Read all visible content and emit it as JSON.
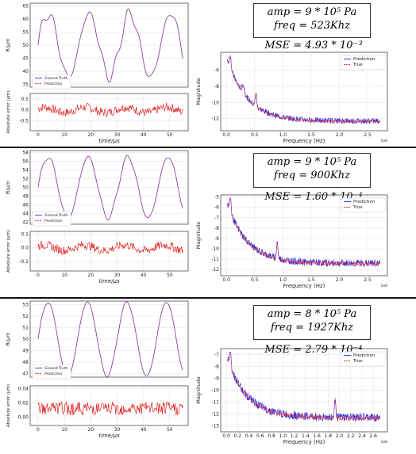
{
  "panels": [
    {
      "amp": "amp  = 9 * 10⁵ Pa",
      "freq": "freq = 523Khz",
      "mse": "MSE = 4.93 * 10⁻³"
    },
    {
      "amp": "amp  = 9 * 10⁵ Pa",
      "freq": "freq = 900Khz",
      "mse": "MSE = 1.60 * 10⁻⁴"
    },
    {
      "amp": "amp  = 8 * 10⁵ Pa",
      "freq": "freq = 1927Khz",
      "mse": "MSE = 2.79 * 10⁻⁴"
    }
  ],
  "chart_data": [
    {
      "type": "line",
      "ylabel": "R/μm",
      "xlim": [
        -3,
        57
      ],
      "ylim": [
        34,
        66
      ],
      "yticks": [
        35,
        40,
        45,
        50,
        55,
        60,
        65
      ],
      "legend": [
        "Ground Truth",
        "Prediction"
      ],
      "legend_loc": "lower-left",
      "series": [
        {
          "name": "Ground Truth",
          "color": "#3333cc"
        },
        {
          "name": "Prediction",
          "color": "#ff4444"
        }
      ],
      "signal": {
        "period": 15.5,
        "center": 50,
        "amp": 12,
        "harm": 2.5,
        "phase": 0
      }
    },
    {
      "type": "line",
      "ylabel": "Absolute error (μm)",
      "xlabel": "time/μs",
      "xlim": [
        -3,
        57
      ],
      "ylim": [
        -0.95,
        0.75
      ],
      "xticks": [
        0,
        10,
        20,
        30,
        40,
        50
      ],
      "yticks": [
        -0.5,
        0.0,
        0.5
      ],
      "series": [
        {
          "name": "Absolute error",
          "color": "#e00000"
        }
      ],
      "noise": {
        "scale": 0.25
      }
    },
    {
      "type": "line",
      "ylabel": "Magnitude",
      "xlabel": "Frequency (Hz)",
      "xlim": [
        -0.1,
        2.85
      ],
      "ylim": [
        -13.5,
        -3.8
      ],
      "xticks": [
        0.0,
        0.5,
        1.0,
        1.5,
        2.0,
        2.5
      ],
      "yticks": [
        -6,
        -8,
        -10,
        -12
      ],
      "xscale_label": "1e6",
      "legend": [
        "Prediction",
        "True"
      ],
      "legend_loc": "top-right",
      "series": [
        {
          "name": "Prediction",
          "color": "#2222dd"
        },
        {
          "name": "True",
          "color": "#ee3333"
        }
      ]
    },
    {
      "type": "line",
      "ylabel": "R/μm",
      "xlim": [
        -3,
        57
      ],
      "ylim": [
        41.5,
        58.5
      ],
      "yticks": [
        42,
        44,
        46,
        48,
        50,
        52,
        54,
        56,
        58
      ],
      "legend": [
        "Ground Truth",
        "Prediction"
      ],
      "legend_loc": "lower-left",
      "series": [
        {
          "name": "Ground Truth",
          "color": "#3333cc"
        },
        {
          "name": "Prediction",
          "color": "#ff4444"
        }
      ],
      "signal": {
        "period": 15.2,
        "center": 50,
        "amp": 7,
        "harm": 0.6,
        "phase": 0
      }
    },
    {
      "type": "line",
      "ylabel": "Absolute error (μm)",
      "xlabel": "time/μs",
      "xlim": [
        -3,
        57
      ],
      "ylim": [
        -0.17,
        0.12
      ],
      "xticks": [
        0,
        10,
        20,
        30,
        40,
        50
      ],
      "yticks": [
        -0.1,
        0.0,
        0.1
      ],
      "series": [
        {
          "name": "Absolute error",
          "color": "#e00000"
        }
      ],
      "noise": {
        "scale": 0.04
      }
    },
    {
      "type": "line",
      "ylabel": "Magnitude",
      "xlabel": "Frequency (Hz)",
      "xlim": [
        -0.1,
        2.85
      ],
      "ylim": [
        -12.6,
        -4.8
      ],
      "xticks": [
        0.0,
        0.5,
        1.0,
        1.5,
        2.0,
        2.5
      ],
      "yticks": [
        -5,
        -6,
        -7,
        -8,
        -9,
        -10,
        -11,
        -12
      ],
      "xscale_label": "1e6",
      "legend": [
        "Prediction",
        "True"
      ],
      "legend_loc": "top-right",
      "series": [
        {
          "name": "Prediction",
          "color": "#2222dd"
        },
        {
          "name": "True",
          "color": "#ee3333"
        }
      ]
    },
    {
      "type": "line",
      "ylabel": "R/μm",
      "xlim": [
        -3,
        57
      ],
      "ylim": [
        46.7,
        53.3
      ],
      "yticks": [
        47,
        48,
        49,
        50,
        51,
        52,
        53
      ],
      "legend": [
        "Ground Truth",
        "Prediction"
      ],
      "legend_loc": "lower-left",
      "series": [
        {
          "name": "Ground Truth",
          "color": "#3333cc"
        },
        {
          "name": "Prediction",
          "color": "#ff4444"
        }
      ],
      "signal": {
        "period": 15.0,
        "center": 50,
        "amp": 3.2,
        "harm": 0.1,
        "phase": 0
      }
    },
    {
      "type": "line",
      "ylabel": "Absolute error (μm)",
      "xlabel": "time/μs",
      "xlim": [
        -3,
        57
      ],
      "ylim": [
        -0.012,
        0.044
      ],
      "xticks": [
        0,
        10,
        20,
        30,
        40,
        50
      ],
      "yticks": [
        0.0,
        0.02,
        0.04
      ],
      "series": [
        {
          "name": "Absolute error",
          "color": "#e00000"
        }
      ],
      "noise": {
        "scale": 0.012
      }
    },
    {
      "type": "line",
      "ylabel": "Magnitude",
      "xlabel": "Frequency (Hz)",
      "xlim": [
        -0.1,
        2.85
      ],
      "ylim": [
        -13.5,
        -6.5
      ],
      "xticks": [
        0.0,
        0.2,
        0.4,
        0.6,
        0.8,
        1.0,
        1.2,
        1.4,
        1.6,
        1.8,
        2.0,
        2.2,
        2.4,
        2.6
      ],
      "yticks": [
        -7,
        -8,
        -9,
        -10,
        -11,
        -12,
        -13
      ],
      "xscale_label": "1e6",
      "legend": [
        "Prediction",
        "True"
      ],
      "legend_loc": "top-right",
      "series": [
        {
          "name": "Prediction",
          "color": "#2222dd"
        },
        {
          "name": "True",
          "color": "#ee3333"
        }
      ]
    }
  ]
}
